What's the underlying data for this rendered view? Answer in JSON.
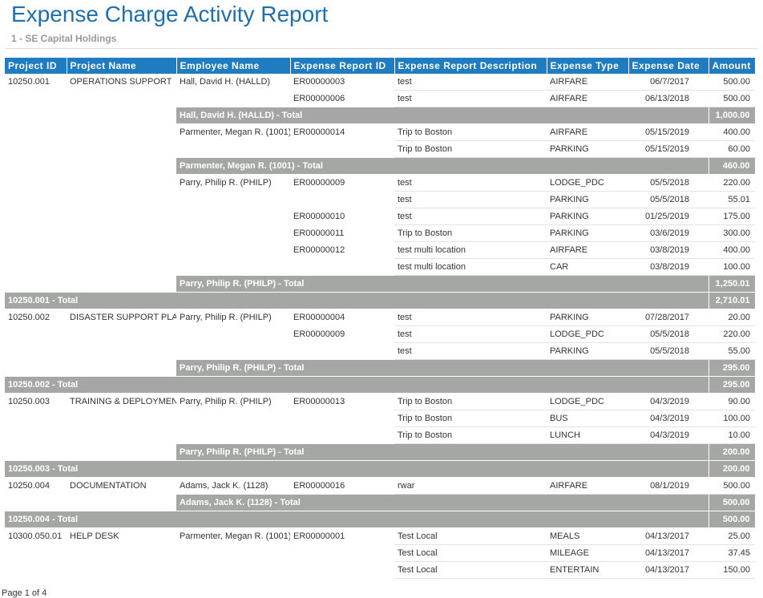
{
  "header": {
    "title": "Expense Charge Activity Report",
    "subtitle": "1 - SE Capital Holdings"
  },
  "table": {
    "columns": [
      "Project ID",
      "Project Name",
      "Employee Name",
      "Expense Report ID",
      "Expense Report Description",
      "Expense Type",
      "Expense Date",
      "Amount"
    ],
    "rows": [
      {
        "project_id": "10250.001",
        "project_name": "OPERATIONS SUPPORT",
        "employee": "Hall, David H. (HALLD)",
        "report_id": "ER00000003",
        "description": "test",
        "type": "AIRFARE",
        "date": "06/7/2017",
        "amount": "500.00"
      },
      {
        "report_id": "ER00000006",
        "description": "test",
        "type": "AIRFARE",
        "date": "06/13/2018",
        "amount": "500.00"
      },
      {
        "level": "employee",
        "label": "Hall, David H. (HALLD) - Total",
        "amount": "1,000.00"
      },
      {
        "employee": "Parmenter, Megan R. (1001)",
        "report_id": "ER00000014",
        "description": "Trip to Boston",
        "type": "AIRFARE",
        "date": "05/15/2019",
        "amount": "400.00"
      },
      {
        "description": "Trip to Boston",
        "type": "PARKING",
        "date": "05/15/2019",
        "amount": "60.00"
      },
      {
        "level": "employee",
        "label": "Parmenter, Megan R. (1001) - Total",
        "amount": "460.00"
      },
      {
        "employee": "Parry, Philip R. (PHILP)",
        "report_id": "ER00000009",
        "description": "test",
        "type": "LODGE_PDC",
        "date": "05/5/2018",
        "amount": "220.00"
      },
      {
        "description": "test",
        "type": "PARKING",
        "date": "05/5/2018",
        "amount": "55.01"
      },
      {
        "report_id": "ER00000010",
        "description": "test",
        "type": "PARKING",
        "date": "01/25/2019",
        "amount": "175.00"
      },
      {
        "report_id": "ER00000011",
        "description": "Trip to Boston",
        "type": "PARKING",
        "date": "03/6/2019",
        "amount": "300.00"
      },
      {
        "report_id": "ER00000012",
        "description": "test multi location",
        "type": "AIRFARE",
        "date": "03/8/2019",
        "amount": "400.00"
      },
      {
        "description": "test multi location",
        "type": "CAR",
        "date": "03/8/2019",
        "amount": "100.00"
      },
      {
        "level": "employee",
        "label": "Parry, Philip R. (PHILP) - Total",
        "amount": "1,250.01"
      },
      {
        "level": "project",
        "label": "10250.001 - Total",
        "amount": "2,710.01"
      },
      {
        "project_id": "10250.002",
        "project_name": "DISASTER SUPPORT PLAN",
        "employee": "Parry, Philip R. (PHILP)",
        "report_id": "ER00000004",
        "description": "test",
        "type": "PARKING",
        "date": "07/28/2017",
        "amount": "20.00"
      },
      {
        "report_id": "ER00000009",
        "description": "test",
        "type": "LODGE_PDC",
        "date": "05/5/2018",
        "amount": "220.00"
      },
      {
        "description": "test",
        "type": "PARKING",
        "date": "05/5/2018",
        "amount": "55.00"
      },
      {
        "level": "employee",
        "label": "Parry, Philip R. (PHILP) - Total",
        "amount": "295.00"
      },
      {
        "level": "project",
        "label": "10250.002 - Total",
        "amount": "295.00"
      },
      {
        "project_id": "10250.003",
        "project_name": "TRAINING & DEPLOYMENT",
        "employee": "Parry, Philip R. (PHILP)",
        "report_id": "ER00000013",
        "description": "Trip to Boston",
        "type": "LODGE_PDC",
        "date": "04/3/2019",
        "amount": "90.00"
      },
      {
        "description": "Trip to Boston",
        "type": "BUS",
        "date": "04/3/2019",
        "amount": "100.00"
      },
      {
        "description": "Trip to Boston",
        "type": "LUNCH",
        "date": "04/3/2019",
        "amount": "10.00"
      },
      {
        "level": "employee",
        "label": "Parry, Philip R. (PHILP) - Total",
        "amount": "200.00"
      },
      {
        "level": "project",
        "label": "10250.003 - Total",
        "amount": "200.00"
      },
      {
        "project_id": "10250.004",
        "project_name": "DOCUMENTATION",
        "employee": "Adams, Jack K. (1128)",
        "report_id": "ER00000016",
        "description": "rwar",
        "type": "AIRFARE",
        "date": "08/1/2019",
        "amount": "500.00"
      },
      {
        "level": "employee",
        "label": "Adams, Jack K. (1128) - Total",
        "amount": "500.00"
      },
      {
        "level": "project",
        "label": "10250.004 - Total",
        "amount": "500.00"
      },
      {
        "project_id": "10300.050.01",
        "project_name": "HELP DESK",
        "employee": "Parmenter, Megan R. (1001)",
        "report_id": "ER00000001",
        "description": "Test Local",
        "type": "MEALS",
        "date": "04/13/2017",
        "amount": "25.00"
      },
      {
        "description": "Test Local",
        "type": "MILEAGE",
        "date": "04/13/2017",
        "amount": "37.45"
      },
      {
        "description": "Test Local",
        "type": "ENTERTAIN",
        "date": "04/13/2017",
        "amount": "150.00"
      }
    ]
  },
  "footer": {
    "page": "Page 1 of 4"
  }
}
